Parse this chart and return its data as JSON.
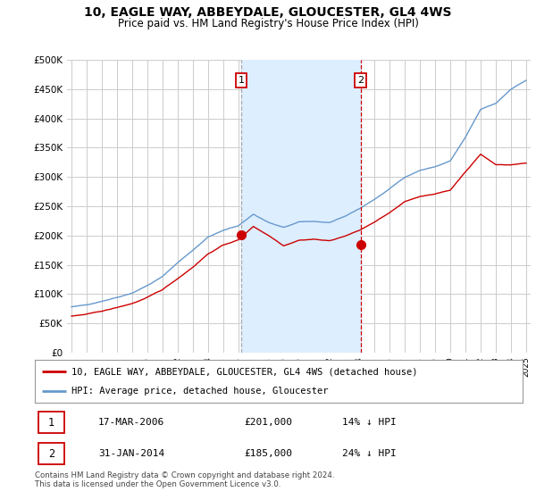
{
  "title": "10, EAGLE WAY, ABBEYDALE, GLOUCESTER, GL4 4WS",
  "subtitle": "Price paid vs. HM Land Registry's House Price Index (HPI)",
  "red_label": "10, EAGLE WAY, ABBEYDALE, GLOUCESTER, GL4 4WS (detached house)",
  "blue_label": "HPI: Average price, detached house, Gloucester",
  "annotation1": {
    "num": "1",
    "date": "17-MAR-2006",
    "price": "£201,000",
    "pct": "14% ↓ HPI"
  },
  "annotation2": {
    "num": "2",
    "date": "31-JAN-2014",
    "price": "£185,000",
    "pct": "24% ↓ HPI"
  },
  "footer": "Contains HM Land Registry data © Crown copyright and database right 2024.\nThis data is licensed under the Open Government Licence v3.0.",
  "ylim": [
    0,
    500000
  ],
  "yticks": [
    0,
    50000,
    100000,
    150000,
    200000,
    250000,
    300000,
    350000,
    400000,
    450000,
    500000
  ],
  "bg_color": "#ffffff",
  "grid_color": "#cccccc",
  "hpi_color": "#6699cc",
  "price_color": "#cc0000",
  "shade_color": "#ddeeff",
  "sale1_x": 2006.21,
  "sale1_y": 201000,
  "sale2_x": 2014.08,
  "sale2_y": 185000,
  "xmin": 1995,
  "xmax": 2025
}
